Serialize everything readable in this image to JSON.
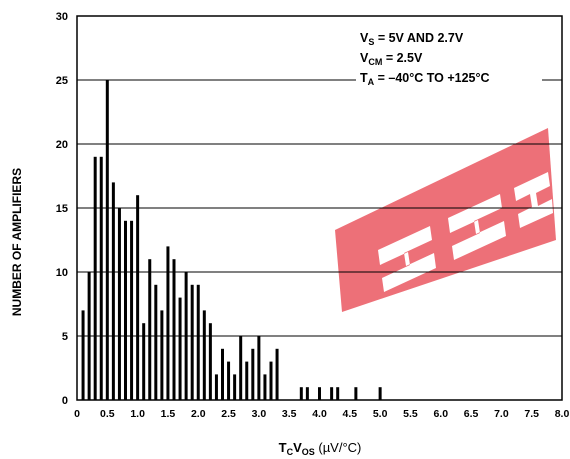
{
  "chart_data": {
    "type": "bar",
    "xlabel": {
      "main": "T",
      "sub1": "C",
      "mid": "V",
      "sub2": "OS",
      "unit": " (µV/°C)"
    },
    "ylabel": "NUMBER OF AMPLIFIERS",
    "xlim": [
      0,
      8.0
    ],
    "ylim": [
      0,
      30
    ],
    "x_ticks": [
      "0",
      "0.5",
      "1.0",
      "1.5",
      "2.0",
      "2.5",
      "3.0",
      "3.5",
      "4.0",
      "4.5",
      "5.0",
      "5.5",
      "6.0",
      "6.5",
      "7.0",
      "7.5",
      "8.0"
    ],
    "y_ticks": [
      "0",
      "5",
      "10",
      "15",
      "20",
      "25",
      "30"
    ],
    "gridlines": "horizontal",
    "annotations": [
      {
        "main": "V",
        "sub": "S",
        "rest": " = 5V AND 2.7V"
      },
      {
        "main": "V",
        "sub": "CM",
        "rest": " = 2.5V"
      },
      {
        "main": "T",
        "sub": "A",
        "rest": " = –40°C TO +125°C"
      }
    ],
    "bars": [
      {
        "x": 0.1,
        "y": 7
      },
      {
        "x": 0.2,
        "y": 10
      },
      {
        "x": 0.3,
        "y": 19
      },
      {
        "x": 0.4,
        "y": 19
      },
      {
        "x": 0.5,
        "y": 25
      },
      {
        "x": 0.6,
        "y": 17
      },
      {
        "x": 0.7,
        "y": 15
      },
      {
        "x": 0.8,
        "y": 14
      },
      {
        "x": 0.9,
        "y": 14
      },
      {
        "x": 1.0,
        "y": 16
      },
      {
        "x": 1.1,
        "y": 6
      },
      {
        "x": 1.2,
        "y": 11
      },
      {
        "x": 1.3,
        "y": 9
      },
      {
        "x": 1.4,
        "y": 7
      },
      {
        "x": 1.5,
        "y": 12
      },
      {
        "x": 1.6,
        "y": 11
      },
      {
        "x": 1.7,
        "y": 8
      },
      {
        "x": 1.8,
        "y": 10
      },
      {
        "x": 1.9,
        "y": 9
      },
      {
        "x": 2.0,
        "y": 9
      },
      {
        "x": 2.1,
        "y": 7
      },
      {
        "x": 2.2,
        "y": 6
      },
      {
        "x": 2.3,
        "y": 2
      },
      {
        "x": 2.4,
        "y": 4
      },
      {
        "x": 2.5,
        "y": 3
      },
      {
        "x": 2.6,
        "y": 2
      },
      {
        "x": 2.7,
        "y": 5
      },
      {
        "x": 2.8,
        "y": 3
      },
      {
        "x": 2.9,
        "y": 4
      },
      {
        "x": 3.0,
        "y": 5
      },
      {
        "x": 3.1,
        "y": 2
      },
      {
        "x": 3.2,
        "y": 3
      },
      {
        "x": 3.3,
        "y": 4
      },
      {
        "x": 3.7,
        "y": 1
      },
      {
        "x": 3.8,
        "y": 1
      },
      {
        "x": 4.0,
        "y": 1
      },
      {
        "x": 4.2,
        "y": 1
      },
      {
        "x": 4.3,
        "y": 1
      },
      {
        "x": 4.6,
        "y": 1
      },
      {
        "x": 5.0,
        "y": 1
      }
    ]
  },
  "colors": {
    "axis": "#000000",
    "bar": "#000000",
    "watermark": "#e8414b"
  }
}
